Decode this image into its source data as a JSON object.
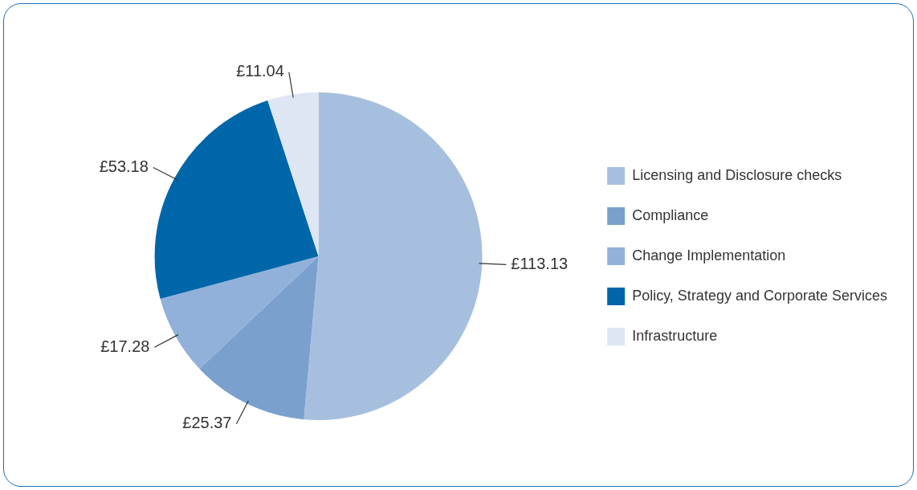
{
  "chart_data": {
    "type": "pie",
    "categories": [
      "Licensing and Disclosure checks",
      "Compliance",
      "Change Implementation",
      "Policy, Strategy and Corporate Services",
      "Infrastructure"
    ],
    "values": [
      113.13,
      25.37,
      17.28,
      53.18,
      11.04
    ],
    "value_labels": [
      "£113.13",
      "£25.37",
      "£17.28",
      "£53.18",
      "£11.04"
    ],
    "colors": [
      "#a7bfde",
      "#7aa0cd",
      "#92b1da",
      "#0066aa",
      "#dde6f2"
    ],
    "legend": "right"
  }
}
